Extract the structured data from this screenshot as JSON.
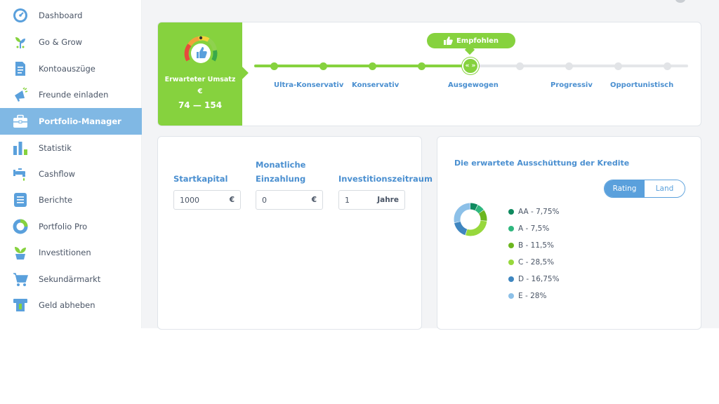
{
  "sidebar": {
    "items": [
      {
        "label": "Dashboard",
        "icon": "dashboard-gauge-icon"
      },
      {
        "label": "Go & Grow",
        "icon": "plant-sprout-icon"
      },
      {
        "label": "Kontoauszüge",
        "icon": "document-icon"
      },
      {
        "label": "Freunde einladen",
        "icon": "megaphone-icon"
      },
      {
        "label": "Portfolio-Manager",
        "icon": "briefcase-icon",
        "active": true
      },
      {
        "label": "Statistik",
        "icon": "bar-chart-icon"
      },
      {
        "label": "Cashflow",
        "icon": "faucet-icon"
      },
      {
        "label": "Berichte",
        "icon": "report-list-icon"
      },
      {
        "label": "Portfolio Pro",
        "icon": "ring-chart-icon"
      },
      {
        "label": "Investitionen",
        "icon": "potted-plant-icon"
      },
      {
        "label": "Sekundärmarkt",
        "icon": "shopping-cart-icon"
      },
      {
        "label": "Geld abheben",
        "icon": "atm-withdraw-icon"
      }
    ]
  },
  "risk": {
    "umsatz_title": "Erwarteter Umsatz",
    "currency": "€",
    "range": "74 — 154",
    "recommended_label": "Empfohlen",
    "selected_glyph": "« »",
    "tiers": [
      "Ultra-Konservativ",
      "Konservativ",
      "Ausgewogen",
      "Progressiv",
      "Opportunistisch"
    ],
    "selected_tier": "Ausgewogen",
    "slider_position_fraction": 0.5
  },
  "calculator": {
    "startkapital_label": "Startkapital",
    "einzahlung_label_1": "Monatliche",
    "einzahlung_label_2": "Einzahlung",
    "zeitraum_label": "Investitionszeitraum",
    "startkapital_value": "1000",
    "einzahlung_value": "0",
    "zeitraum_value": "1",
    "currency_suffix": "€",
    "years_suffix": "Jahre"
  },
  "distribution": {
    "title": "Die erwartete Ausschüttung der Kredite",
    "toggle_rating": "Rating",
    "toggle_land": "Land",
    "legend": [
      {
        "label": "AA - 7,75%",
        "value": 7.75,
        "color": "#0f8a5f"
      },
      {
        "label": "A - 7,5%",
        "value": 7.5,
        "color": "#2fb77e"
      },
      {
        "label": "B - 11,5%",
        "value": 11.5,
        "color": "#6cb61f"
      },
      {
        "label": "C - 28,5%",
        "value": 28.5,
        "color": "#97d83c"
      },
      {
        "label": "D - 16,75%",
        "value": 16.75,
        "color": "#3f86c0"
      },
      {
        "label": "E - 28%",
        "value": 28,
        "color": "#8cc0e8"
      }
    ]
  }
}
